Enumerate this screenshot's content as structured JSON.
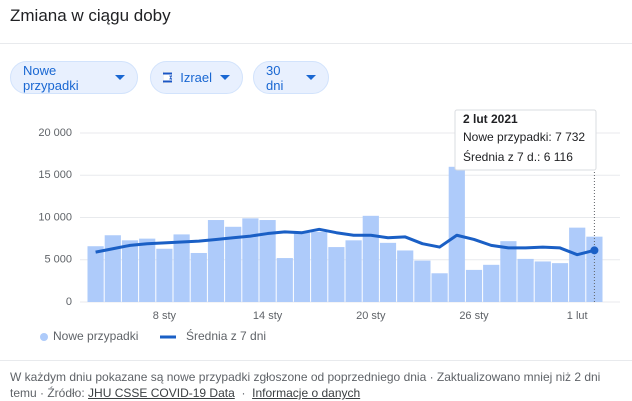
{
  "header": {
    "title": "Zmiana w ciągu doby"
  },
  "filters": [
    {
      "label": "Nowe przypadki"
    },
    {
      "label": "Izrael"
    },
    {
      "label": "30 dni"
    }
  ],
  "chart_data": {
    "type": "bar",
    "categories": [
      null,
      null,
      null,
      null,
      "8 sty",
      null,
      null,
      null,
      null,
      null,
      "14 sty",
      null,
      null,
      null,
      null,
      null,
      "20 sty",
      null,
      null,
      null,
      null,
      null,
      "26 sty",
      null,
      null,
      null,
      null,
      null,
      "1 lut",
      null
    ],
    "series": [
      {
        "name": "Nowe przypadki",
        "type": "bar",
        "color": "#aecbfa",
        "values": [
          6600,
          7900,
          7300,
          7500,
          6300,
          8000,
          5800,
          9700,
          8900,
          9900,
          9700,
          5200,
          8200,
          8300,
          6500,
          7300,
          10200,
          7000,
          6100,
          4900,
          3400,
          16000,
          3800,
          4400,
          7200,
          5100,
          4800,
          4600,
          8800,
          7732
        ],
        "value_labels": [
          null,
          null,
          null,
          null,
          null,
          null,
          null,
          null,
          null,
          null,
          null,
          null,
          null,
          null,
          null,
          null,
          null,
          null,
          null,
          null,
          null,
          null,
          null,
          null,
          null,
          null,
          null,
          null,
          null,
          "7 732"
        ]
      },
      {
        "name": "Średnia z 7 dni",
        "type": "line",
        "color": "#1a5fc5",
        "values": [
          5900,
          6300,
          6700,
          6900,
          7000,
          7100,
          7200,
          7400,
          7600,
          7800,
          8100,
          8300,
          8200,
          8600,
          8200,
          7900,
          7900,
          7600,
          7700,
          6900,
          6500,
          7900,
          7400,
          6700,
          6400,
          6400,
          6500,
          6400,
          5600,
          6116
        ],
        "value_labels": [
          null,
          null,
          null,
          null,
          null,
          null,
          null,
          null,
          null,
          null,
          null,
          null,
          null,
          null,
          null,
          null,
          null,
          null,
          null,
          null,
          null,
          null,
          null,
          null,
          null,
          null,
          null,
          null,
          null,
          "6 116"
        ]
      }
    ],
    "ylim": [
      0,
      20000
    ],
    "yticks": [
      0,
      {
        "value": 5000,
        "label": "5 000"
      },
      {
        "value": 10000,
        "label": "10 000"
      },
      {
        "value": 15000,
        "label": "15 000"
      },
      {
        "value": 20000,
        "label": "20 000"
      }
    ],
    "grid": true,
    "legend": "bottom-left",
    "tooltip": {
      "title": "2 lut 2021",
      "rows": [
        "Nowe przypadki:",
        "Średnia z 7 d.:"
      ]
    }
  },
  "footer": {
    "text": "W każdym dniu pokazane są nowe przypadki zgłoszone od poprzedniego dnia · Zaktualizowano mniej niż 2 dni temu · Źródło:",
    "link1": "JHU CSSE COVID-19 Data",
    "sep": "·",
    "link2": "Informacje o danych"
  }
}
